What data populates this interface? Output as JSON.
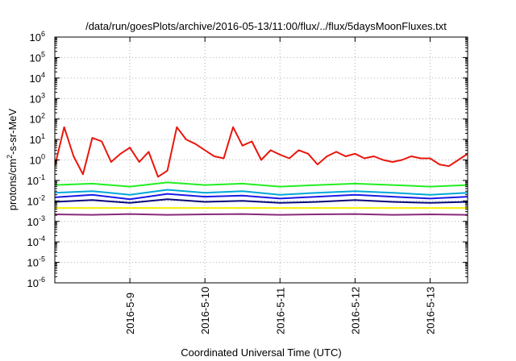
{
  "chart_data": {
    "type": "line",
    "title": "/data/run/goesPlots/archive/2016-05-13/11:00/flux/../flux/5daysMoonFluxes.txt",
    "xlabel": "Coordinated Universal Time (UTC)",
    "ylabel": "protons/cm²-s-sr-MeV",
    "ylabel_parts": {
      "pre": "protons/cm",
      "sup": "2",
      "post": "-s-sr-MeV"
    },
    "yscale": "log",
    "ylim_exponent": [
      -6,
      6
    ],
    "y_ticks": [
      {
        "base": "10",
        "exp": "-6"
      },
      {
        "base": "10",
        "exp": "-5"
      },
      {
        "base": "10",
        "exp": "-4"
      },
      {
        "base": "10",
        "exp": "-3"
      },
      {
        "base": "10",
        "exp": "-2"
      },
      {
        "base": "10",
        "exp": "-1"
      },
      {
        "base": "10",
        "exp": "0"
      },
      {
        "base": "10",
        "exp": "1"
      },
      {
        "base": "10",
        "exp": "2"
      },
      {
        "base": "10",
        "exp": "3"
      },
      {
        "base": "10",
        "exp": "4"
      },
      {
        "base": "10",
        "exp": "5"
      },
      {
        "base": "10",
        "exp": "6"
      }
    ],
    "xlim": [
      "2016-05-08 00:00",
      "2016-05-13 12:00"
    ],
    "x_ticks": [
      "2016-5-9",
      "2016-5-10",
      "2016-5-11",
      "2016-5-12",
      "2016-5-13"
    ],
    "grid": true,
    "series": [
      {
        "color": "#e8160c",
        "x": [
          "2016-05-08 00:00",
          "2016-05-08 03:00",
          "2016-05-08 06:00",
          "2016-05-08 09:00",
          "2016-05-08 12:00",
          "2016-05-08 15:00",
          "2016-05-08 18:00",
          "2016-05-08 21:00",
          "2016-05-09 00:00",
          "2016-05-09 03:00",
          "2016-05-09 06:00",
          "2016-05-09 09:00",
          "2016-05-09 12:00",
          "2016-05-09 15:00",
          "2016-05-09 18:00",
          "2016-05-09 21:00",
          "2016-05-10 00:00",
          "2016-05-10 03:00",
          "2016-05-10 06:00",
          "2016-05-10 09:00",
          "2016-05-10 12:00",
          "2016-05-10 15:00",
          "2016-05-10 18:00",
          "2016-05-10 21:00",
          "2016-05-11 00:00",
          "2016-05-11 03:00",
          "2016-05-11 06:00",
          "2016-05-11 09:00",
          "2016-05-11 12:00",
          "2016-05-11 15:00",
          "2016-05-11 18:00",
          "2016-05-11 21:00",
          "2016-05-12 00:00",
          "2016-05-12 03:00",
          "2016-05-12 06:00",
          "2016-05-12 09:00",
          "2016-05-12 12:00",
          "2016-05-12 15:00",
          "2016-05-12 18:00",
          "2016-05-12 21:00",
          "2016-05-13 00:00",
          "2016-05-13 03:00",
          "2016-05-13 06:00",
          "2016-05-13 09:00",
          "2016-05-13 12:00"
        ],
        "y": [
          0.5,
          40,
          1.5,
          0.2,
          12,
          8,
          0.8,
          2,
          4,
          0.8,
          2.5,
          0.15,
          0.3,
          40,
          10,
          6,
          3,
          1.5,
          1.2,
          40,
          5,
          8,
          1,
          3,
          1.8,
          1.2,
          3,
          2,
          0.6,
          1.5,
          2.5,
          1.5,
          2,
          1.2,
          1.5,
          1,
          0.8,
          1,
          1.5,
          1.2,
          1.2,
          0.6,
          0.5,
          1,
          2
        ]
      },
      {
        "color": "#22ee22",
        "x": [
          "2016-05-08 00:00",
          "2016-05-08 12:00",
          "2016-05-09 00:00",
          "2016-05-09 12:00",
          "2016-05-10 00:00",
          "2016-05-10 12:00",
          "2016-05-11 00:00",
          "2016-05-11 12:00",
          "2016-05-12 00:00",
          "2016-05-12 12:00",
          "2016-05-13 00:00",
          "2016-05-13 12:00"
        ],
        "y": [
          0.06,
          0.07,
          0.05,
          0.08,
          0.06,
          0.07,
          0.05,
          0.06,
          0.07,
          0.06,
          0.05,
          0.06
        ]
      },
      {
        "color": "#00a8d8",
        "x": [
          "2016-05-08 00:00",
          "2016-05-08 12:00",
          "2016-05-09 00:00",
          "2016-05-09 12:00",
          "2016-05-10 00:00",
          "2016-05-10 12:00",
          "2016-05-11 00:00",
          "2016-05-11 12:00",
          "2016-05-12 00:00",
          "2016-05-12 12:00",
          "2016-05-13 00:00",
          "2016-05-13 12:00"
        ],
        "y": [
          0.025,
          0.03,
          0.02,
          0.035,
          0.025,
          0.03,
          0.02,
          0.025,
          0.03,
          0.025,
          0.02,
          0.025
        ]
      },
      {
        "color": "#1a1ae6",
        "x": [
          "2016-05-08 00:00",
          "2016-05-08 12:00",
          "2016-05-09 00:00",
          "2016-05-09 12:00",
          "2016-05-10 00:00",
          "2016-05-10 12:00",
          "2016-05-11 00:00",
          "2016-05-11 12:00",
          "2016-05-12 00:00",
          "2016-05-12 12:00",
          "2016-05-13 00:00",
          "2016-05-13 12:00"
        ],
        "y": [
          0.015,
          0.02,
          0.012,
          0.022,
          0.016,
          0.018,
          0.013,
          0.016,
          0.02,
          0.016,
          0.013,
          0.016
        ]
      },
      {
        "color": "#0a0a80",
        "x": [
          "2016-05-08 00:00",
          "2016-05-08 12:00",
          "2016-05-09 00:00",
          "2016-05-09 12:00",
          "2016-05-10 00:00",
          "2016-05-10 12:00",
          "2016-05-11 00:00",
          "2016-05-11 12:00",
          "2016-05-12 00:00",
          "2016-05-12 12:00",
          "2016-05-13 00:00",
          "2016-05-13 12:00"
        ],
        "y": [
          0.009,
          0.011,
          0.008,
          0.012,
          0.009,
          0.01,
          0.008,
          0.009,
          0.011,
          0.009,
          0.008,
          0.009
        ]
      },
      {
        "color": "#f5f000",
        "x": [
          "2016-05-08 00:00",
          "2016-05-08 12:00",
          "2016-05-09 00:00",
          "2016-05-09 12:00",
          "2016-05-10 00:00",
          "2016-05-10 12:00",
          "2016-05-11 00:00",
          "2016-05-11 12:00",
          "2016-05-12 00:00",
          "2016-05-12 12:00",
          "2016-05-13 00:00",
          "2016-05-13 12:00"
        ],
        "y": [
          0.0045,
          0.0045,
          0.0045,
          0.0045,
          0.0045,
          0.0045,
          0.0045,
          0.0045,
          0.0045,
          0.0045,
          0.0045,
          0.0045
        ]
      },
      {
        "color": "#8b2a7a",
        "x": [
          "2016-05-08 00:00",
          "2016-05-08 12:00",
          "2016-05-09 00:00",
          "2016-05-09 12:00",
          "2016-05-10 00:00",
          "2016-05-10 12:00",
          "2016-05-11 00:00",
          "2016-05-11 12:00",
          "2016-05-12 00:00",
          "2016-05-12 12:00",
          "2016-05-13 00:00",
          "2016-05-13 12:00"
        ],
        "y": [
          0.0022,
          0.0021,
          0.0023,
          0.0021,
          0.0022,
          0.0023,
          0.0021,
          0.0022,
          0.0023,
          0.0021,
          0.0022,
          0.0021
        ]
      }
    ]
  }
}
